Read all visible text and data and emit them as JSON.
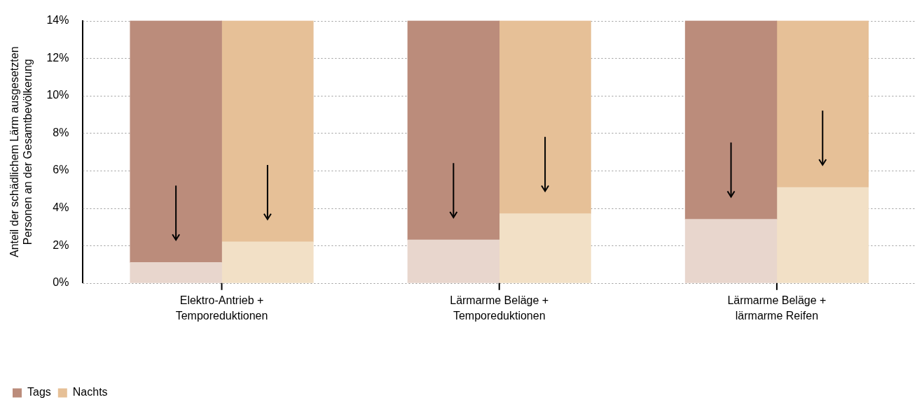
{
  "chart_data": {
    "type": "bar",
    "ylabel": "Anteil der schädlichem Lärm ausgesetzten Personen an der Gesamtbevölkerung",
    "categories": [
      null,
      null,
      null,
      null,
      null,
      null
    ],
    "annotations": [
      "Elektro-Antrieb + Temporeduktionen",
      "Lärmarme Beläge + Temporeduktionen",
      "Lärmarme Beläge + lärmarme Reifen"
    ],
    "stacked": true,
    "series": [
      {
        "color": "#e8d6cd",
        "values": [
          1.1,
          null,
          2.3,
          null,
          3.4,
          null
        ]
      },
      {
        "name": "Tags",
        "color": "#bb8c7b",
        "values": [
          12.9,
          null,
          11.7,
          null,
          10.6,
          null
        ]
      },
      {
        "color": "#f2e0c6",
        "values": [
          null,
          2.2,
          null,
          3.7,
          null,
          5.1
        ]
      },
      {
        "name": "Nachts",
        "color": "#e6c097",
        "values": [
          null,
          11.8,
          null,
          10.3,
          null,
          8.9
        ]
      }
    ],
    "ylim": [
      0,
      14
    ],
    "yticks": [
      {
        "value": 0,
        "label": "0%"
      },
      {
        "value": 2,
        "label": "2%"
      },
      {
        "value": 4,
        "label": "4%"
      },
      {
        "value": 6,
        "label": "6%"
      },
      {
        "value": 8,
        "label": "8%"
      },
      {
        "value": 10,
        "label": "10%"
      },
      {
        "value": 12,
        "label": "12%"
      },
      {
        "value": 14,
        "label": "14%"
      }
    ],
    "tick_labels": "y",
    "grid": "y",
    "legend": "bottom left"
  }
}
